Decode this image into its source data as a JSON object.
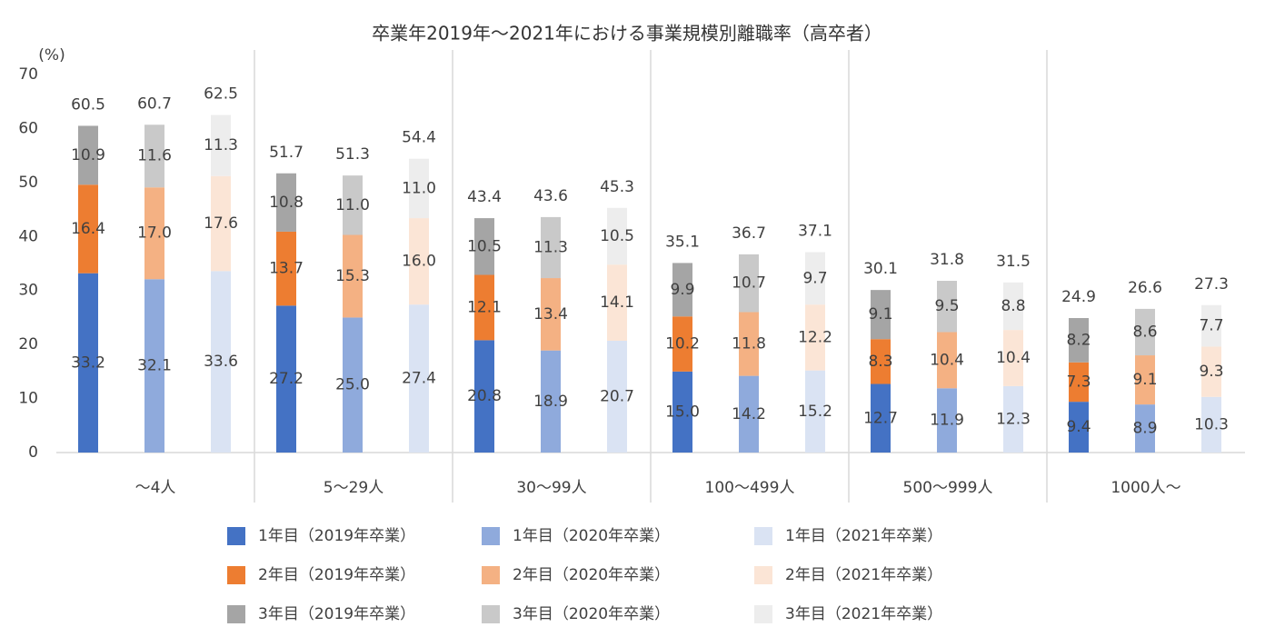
{
  "chart_data": {
    "type": "stacked_bar",
    "title": "卒業年2019年～2021年における事業規模別離職率（高卒者）",
    "ylabel": "(%)",
    "categories": [
      "～4人",
      "5～29人",
      "30～99人",
      "100～499人",
      "500～999人",
      "1000人～"
    ],
    "ylim": [
      0,
      70
    ],
    "yticks": [
      0,
      10,
      20,
      30,
      40,
      50,
      60,
      70
    ],
    "grid": false,
    "stacks": [
      {
        "totals": [
          60.5,
          51.7,
          43.4,
          35.1,
          30.1,
          24.9
        ],
        "series": [
          {
            "name": "1年目（2019年卒業）",
            "color": "#4472c4",
            "values": [
              33.2,
              27.2,
              20.8,
              15.0,
              12.7,
              9.4
            ],
            "value_labels": [
              "33.2",
              "27.2",
              "20.8",
              "15.0",
              "12.7",
              "9.4"
            ]
          },
          {
            "name": "2年目（2019年卒業）",
            "color": "#ed7d31",
            "values": [
              16.4,
              13.7,
              12.1,
              10.2,
              8.3,
              7.3
            ]
          },
          {
            "name": "3年目（2019年卒業）",
            "color": "#a5a5a5",
            "values": [
              10.9,
              10.8,
              10.5,
              9.9,
              9.1,
              8.2
            ]
          }
        ]
      },
      {
        "totals": [
          60.7,
          51.3,
          43.6,
          36.7,
          31.8,
          26.6
        ],
        "series": [
          {
            "name": "1年目（2020年卒業）",
            "color": "#8faadc",
            "values": [
              32.1,
              25.0,
              18.9,
              14.2,
              11.9,
              8.9
            ],
            "value_labels": [
              "32.1",
              "25.0",
              "18.9",
              "14.2",
              "11.9",
              "8.9"
            ]
          },
          {
            "name": "2年目（2020年卒業）",
            "color": "#f4b183",
            "values": [
              17.0,
              15.3,
              13.4,
              11.8,
              10.4,
              9.1
            ],
            "value_labels": [
              "17.0",
              "15.3",
              "13.4",
              "11.8",
              "10.4",
              "9.1"
            ]
          },
          {
            "name": "3年目（2020年卒業）",
            "color": "#c9c9c9",
            "values": [
              11.6,
              11.0,
              11.3,
              10.7,
              9.5,
              8.6
            ],
            "value_labels": [
              "11.6",
              "11.0",
              "11.3",
              "10.7",
              "9.5",
              "8.6"
            ]
          }
        ]
      },
      {
        "totals": [
          62.5,
          54.4,
          45.3,
          37.1,
          31.5,
          27.3
        ],
        "series": [
          {
            "name": "1年目（2021年卒業）",
            "color": "#dae3f3",
            "values": [
              33.6,
              27.4,
              20.7,
              15.2,
              12.3,
              10.3
            ]
          },
          {
            "name": "2年目（2021年卒業）",
            "color": "#fbe5d6",
            "values": [
              17.6,
              16.0,
              14.1,
              12.2,
              10.4,
              9.3
            ],
            "value_labels": [
              "17.6",
              "16.0",
              "14.1",
              "12.2",
              "10.4",
              "9.3"
            ]
          },
          {
            "name": "3年目（2021年卒業）",
            "color": "#ededed",
            "values": [
              11.3,
              11.0,
              10.5,
              9.7,
              8.8,
              7.7
            ],
            "value_labels": [
              "11.3",
              "11.0",
              "10.5",
              "9.7",
              "8.8",
              "7.7"
            ]
          }
        ]
      }
    ]
  }
}
